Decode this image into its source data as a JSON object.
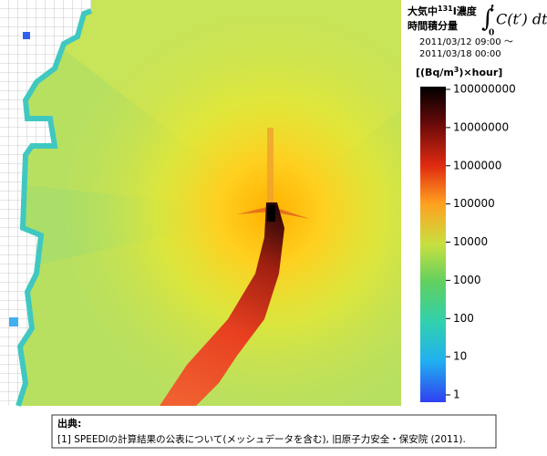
{
  "header": {
    "title_pre": "大気中",
    "title_sup": "131",
    "title_post": "I濃度",
    "title_line2": "時間積分量",
    "integral_sign": "∫",
    "integral_lower": "0",
    "integral_upper": "t",
    "integral_body": "C(t′) dt′",
    "period_start": "2011/03/12 09:00 ～",
    "period_end": "2011/03/18 00:00"
  },
  "colorbar": {
    "unit_pre": "[(Bq/m",
    "unit_sup": "3",
    "unit_post": ")×hour]",
    "scale": "log",
    "lim": [
      1,
      100000000
    ],
    "ticks": [
      100000000,
      10000000,
      1000000,
      100000,
      10000,
      1000,
      100,
      10,
      1
    ]
  },
  "source": {
    "heading": "出典:",
    "text": "[1] SPEEDIの計算結果の公表について(メッシュデータを含む), 旧原子力安全・保安院 (2011)."
  }
}
